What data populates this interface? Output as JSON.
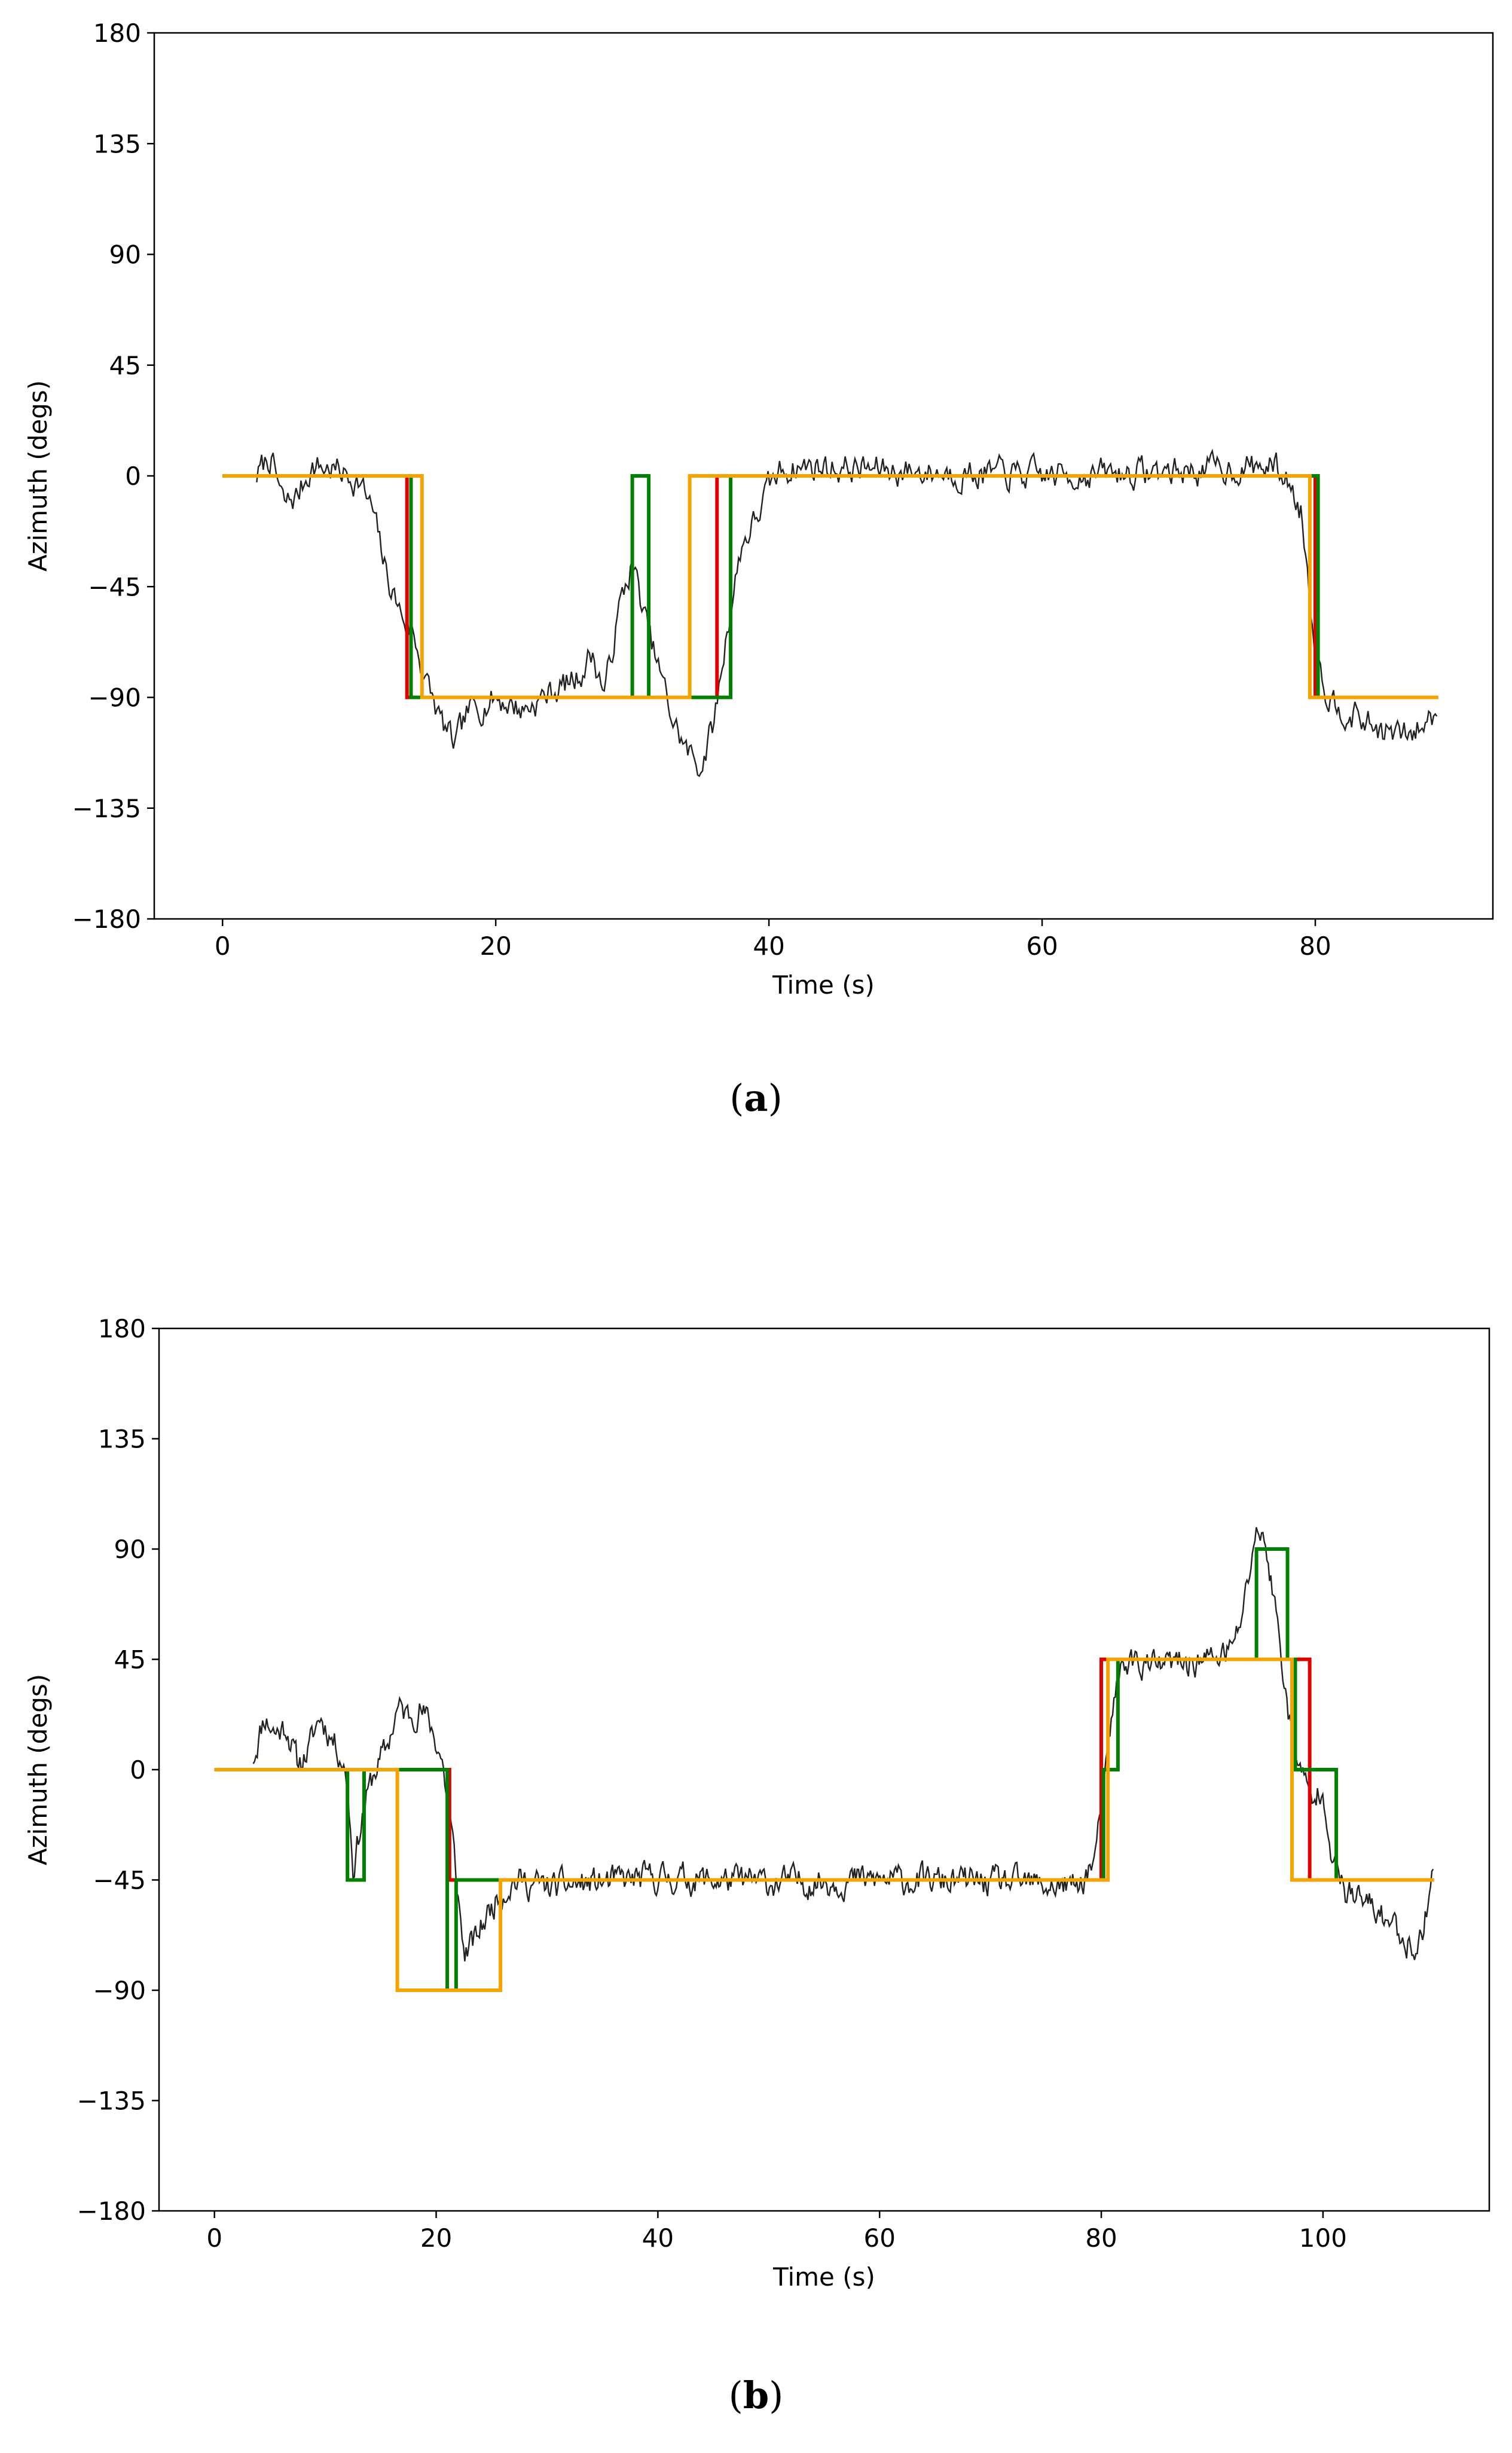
{
  "chart_data": [
    {
      "type": "line",
      "panel": "a",
      "caption_open": "(",
      "caption_letter": "a",
      "caption_close": ")",
      "xlabel": "Time (s)",
      "ylabel": "Azimuth (degs)",
      "xlim": [
        -5,
        93
      ],
      "ylim": [
        -180,
        180
      ],
      "xticks": [
        0,
        20,
        40,
        60,
        80
      ],
      "yticks": [
        -180,
        -135,
        -90,
        -45,
        0,
        45,
        90,
        135,
        180
      ],
      "ytick_labels": [
        "−180",
        "−135",
        "−90",
        "−45",
        "0",
        "45",
        "90",
        "135",
        "180"
      ],
      "grid": false,
      "series": [
        {
          "name": "measured azimuth",
          "color": "#222222",
          "kind": "noisy",
          "seed": 7,
          "noise": 5,
          "anchors": [
            [
              2.5,
              0
            ],
            [
              3.5,
              8
            ],
            [
              4.5,
              -12
            ],
            [
              5.5,
              -8
            ],
            [
              6.5,
              4
            ],
            [
              8,
              3
            ],
            [
              10,
              -2
            ],
            [
              11,
              -15
            ],
            [
              12,
              -40
            ],
            [
              13,
              -55
            ],
            [
              14,
              -65
            ],
            [
              15,
              -85
            ],
            [
              16,
              -100
            ],
            [
              17,
              -110
            ],
            [
              18,
              -96
            ],
            [
              20,
              -90
            ],
            [
              22,
              -95
            ],
            [
              24,
              -88
            ],
            [
              26,
              -82
            ],
            [
              27,
              -72
            ],
            [
              28,
              -88
            ],
            [
              29,
              -55
            ],
            [
              30,
              -35
            ],
            [
              31,
              -60
            ],
            [
              32,
              -80
            ],
            [
              33,
              -100
            ],
            [
              34,
              -112
            ],
            [
              35,
              -118
            ],
            [
              36,
              -100
            ],
            [
              37,
              -60
            ],
            [
              38,
              -28
            ],
            [
              39,
              -18
            ],
            [
              40,
              -5
            ],
            [
              41,
              3
            ],
            [
              43,
              4
            ],
            [
              50,
              2
            ],
            [
              60,
              0
            ],
            [
              70,
              2
            ],
            [
              77,
              4
            ],
            [
              78,
              -2
            ],
            [
              79,
              -15
            ],
            [
              80,
              -70
            ],
            [
              81,
              -90
            ],
            [
              83,
              -98
            ],
            [
              85,
              -104
            ],
            [
              87,
              -106
            ],
            [
              89,
              -95
            ]
          ]
        },
        {
          "name": "red estimate",
          "color": "#e00000",
          "kind": "step",
          "points": [
            [
              0,
              0
            ],
            [
              13.5,
              0
            ],
            [
              13.5,
              -90
            ],
            [
              36.2,
              -90
            ],
            [
              36.2,
              0
            ],
            [
              80,
              0
            ],
            [
              80,
              -90
            ],
            [
              89,
              -90
            ]
          ]
        },
        {
          "name": "green estimate",
          "color": "#008000",
          "kind": "step",
          "points": [
            [
              0,
              0
            ],
            [
              13.8,
              0
            ],
            [
              13.8,
              -90
            ],
            [
              30,
              -90
            ],
            [
              30,
              0
            ],
            [
              31.2,
              0
            ],
            [
              31.2,
              -90
            ],
            [
              37.2,
              -90
            ],
            [
              37.2,
              0
            ],
            [
              80.2,
              0
            ],
            [
              80.2,
              -90
            ],
            [
              89,
              -90
            ]
          ]
        },
        {
          "name": "orange estimate",
          "color": "#f5a300",
          "kind": "step",
          "points": [
            [
              0,
              0
            ],
            [
              14.6,
              0
            ],
            [
              14.6,
              -90
            ],
            [
              34.2,
              -90
            ],
            [
              34.2,
              0
            ],
            [
              79.6,
              0
            ],
            [
              79.6,
              -90
            ],
            [
              89,
              -90
            ]
          ]
        }
      ]
    },
    {
      "type": "line",
      "panel": "b",
      "caption_open": "(",
      "caption_letter": "b",
      "caption_close": ")",
      "xlabel": "Time (s)",
      "ylabel": "Azimuth (degs)",
      "xlim": [
        -5,
        115
      ],
      "ylim": [
        -180,
        180
      ],
      "xticks": [
        0,
        20,
        40,
        60,
        80,
        100
      ],
      "yticks": [
        -180,
        -135,
        -90,
        -45,
        0,
        45,
        90,
        135,
        180
      ],
      "ytick_labels": [
        "−180",
        "−135",
        "−90",
        "−45",
        "0",
        "45",
        "90",
        "135",
        "180"
      ],
      "grid": false,
      "series": [
        {
          "name": "measured azimuth",
          "color": "#222222",
          "kind": "noisy",
          "seed": 11,
          "noise": 5,
          "anchors": [
            [
              3.5,
              5
            ],
            [
              4.5,
              22
            ],
            [
              5.5,
              15
            ],
            [
              6.5,
              18
            ],
            [
              7.5,
              2
            ],
            [
              8.5,
              8
            ],
            [
              9.5,
              22
            ],
            [
              10.5,
              14
            ],
            [
              11.5,
              5
            ],
            [
              12,
              -5
            ],
            [
              12.5,
              -40
            ],
            [
              13.5,
              -15
            ],
            [
              14.5,
              0
            ],
            [
              15.5,
              8
            ],
            [
              16.5,
              25
            ],
            [
              17.5,
              22
            ],
            [
              18.5,
              25
            ],
            [
              19.5,
              18
            ],
            [
              20.5,
              5
            ],
            [
              21.5,
              -30
            ],
            [
              22.5,
              -75
            ],
            [
              23.5,
              -70
            ],
            [
              24.5,
              -60
            ],
            [
              25.5,
              -52
            ],
            [
              27,
              -45
            ],
            [
              30,
              -48
            ],
            [
              40,
              -44
            ],
            [
              50,
              -46
            ],
            [
              60,
              -45
            ],
            [
              70,
              -46
            ],
            [
              78,
              -48
            ],
            [
              79.5,
              -35
            ],
            [
              80.5,
              0
            ],
            [
              81,
              25
            ],
            [
              82,
              45
            ],
            [
              85,
              42
            ],
            [
              90,
              45
            ],
            [
              92,
              50
            ],
            [
              93,
              70
            ],
            [
              94,
              100
            ],
            [
              95,
              88
            ],
            [
              96,
              55
            ],
            [
              97,
              20
            ],
            [
              98,
              0
            ],
            [
              99,
              -15
            ],
            [
              100,
              -5
            ],
            [
              101,
              -40
            ],
            [
              102,
              -50
            ],
            [
              104,
              -55
            ],
            [
              106,
              -62
            ],
            [
              108,
              -72
            ],
            [
              109,
              -68
            ],
            [
              110,
              -35
            ]
          ]
        },
        {
          "name": "red estimate",
          "color": "#e00000",
          "kind": "step",
          "points": [
            [
              0,
              0
            ],
            [
              21.2,
              0
            ],
            [
              21.2,
              -45
            ],
            [
              80,
              -45
            ],
            [
              80,
              45
            ],
            [
              98.8,
              45
            ],
            [
              98.8,
              -45
            ],
            [
              110,
              -45
            ]
          ]
        },
        {
          "name": "green estimate",
          "color": "#008000",
          "kind": "step",
          "points": [
            [
              0,
              0
            ],
            [
              12,
              0
            ],
            [
              12,
              -45
            ],
            [
              13.5,
              -45
            ],
            [
              13.5,
              0
            ],
            [
              21,
              0
            ],
            [
              21,
              -90
            ],
            [
              21.8,
              -90
            ],
            [
              21.8,
              -45
            ],
            [
              80.2,
              -45
            ],
            [
              80.2,
              0
            ],
            [
              81.5,
              0
            ],
            [
              81.5,
              45
            ],
            [
              94,
              45
            ],
            [
              94,
              90
            ],
            [
              96.8,
              90
            ],
            [
              96.8,
              45
            ],
            [
              97.5,
              45
            ],
            [
              97.5,
              0
            ],
            [
              101.2,
              0
            ],
            [
              101.2,
              -45
            ],
            [
              110,
              -45
            ]
          ]
        },
        {
          "name": "orange estimate",
          "color": "#f5a300",
          "kind": "step",
          "points": [
            [
              0,
              0
            ],
            [
              16.5,
              0
            ],
            [
              16.5,
              -90
            ],
            [
              25.8,
              -90
            ],
            [
              25.8,
              -45
            ],
            [
              80.6,
              -45
            ],
            [
              80.6,
              45
            ],
            [
              97.2,
              45
            ],
            [
              97.2,
              -45
            ],
            [
              110,
              -45
            ]
          ]
        }
      ]
    }
  ]
}
